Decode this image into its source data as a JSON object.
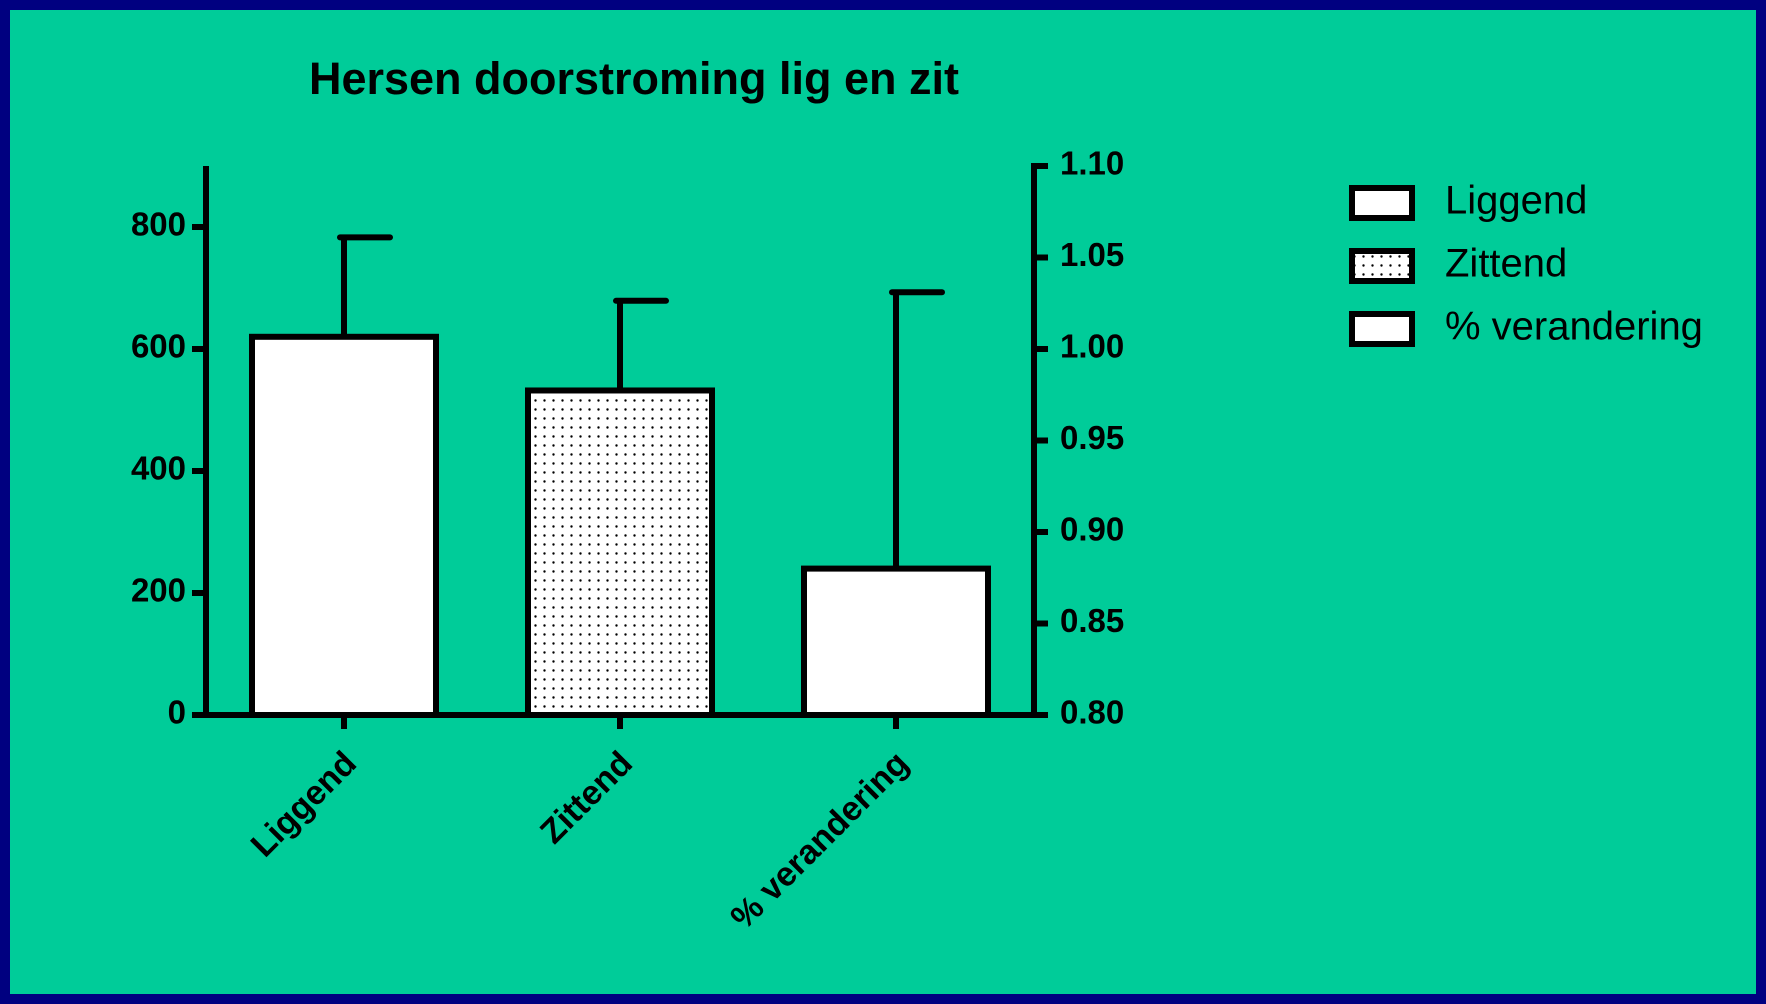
{
  "chart_data": {
    "type": "bar",
    "title": "Hersen doorstroming lig en zit",
    "categories": [
      "Liggend",
      "Zittend",
      "% verandering"
    ],
    "values": [
      620,
      532,
      0.88
    ],
    "errors": [
      163,
      147,
      0.151
    ],
    "bar_axes": [
      "y",
      "y",
      "y2"
    ],
    "fills": [
      "white",
      "dots",
      "white"
    ],
    "ylim": [
      0,
      900
    ],
    "yticks": [
      0,
      200,
      400,
      600,
      800
    ],
    "y2lim": [
      0.8,
      1.1
    ],
    "y2ticks": [
      {
        "value": 0.8,
        "label": "0.80"
      },
      {
        "value": 0.85,
        "label": "0.85"
      },
      {
        "value": 0.9,
        "label": "0.90"
      },
      {
        "value": 0.95,
        "label": "0.95"
      },
      {
        "value": 1.0,
        "label": "1.00"
      },
      {
        "value": 1.05,
        "label": "1.05"
      },
      {
        "value": 1.1,
        "label": "1.10"
      }
    ],
    "background": "#00cc99",
    "border": "#000080"
  }
}
